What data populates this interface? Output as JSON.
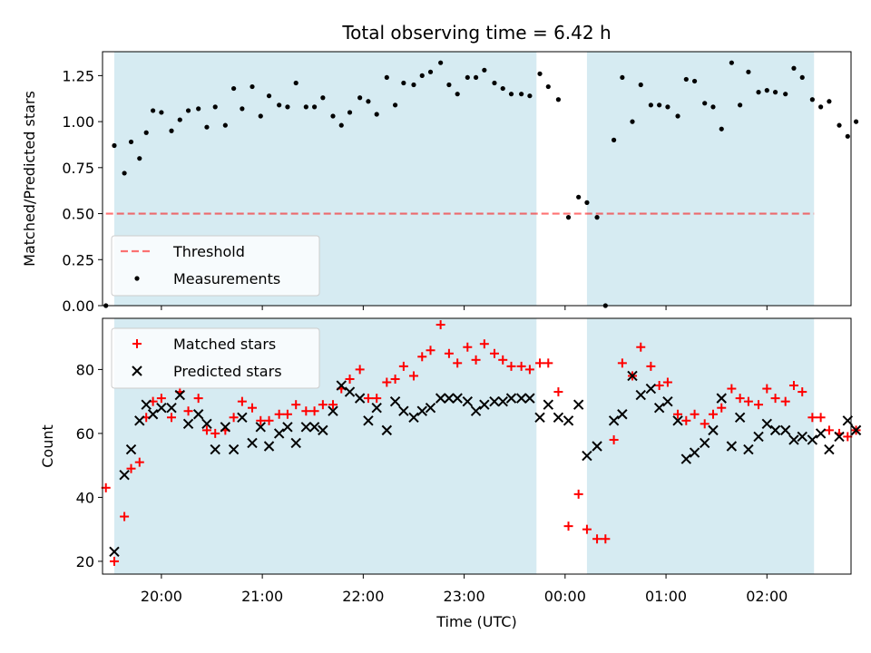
{
  "chart_data": [
    {
      "type": "scatter",
      "title": "Total observing time = 6.42 h",
      "xlabel": "",
      "ylabel": "Matched/Predicted stars",
      "xlim": [
        "19:25",
        "02:50"
      ],
      "ylim": [
        0,
        1.38
      ],
      "yticks": [
        0.0,
        0.25,
        0.5,
        0.75,
        1.0,
        1.25
      ],
      "ytick_labels": [
        "0.00",
        "0.25",
        "0.50",
        "0.75",
        "1.00",
        "1.25"
      ],
      "xticks": [
        "20:00",
        "21:00",
        "22:00",
        "23:00",
        "00:00",
        "01:00",
        "02:00"
      ],
      "shaded_ranges": [
        [
          "19:32",
          "23:43"
        ],
        [
          "00:13",
          "02:28"
        ]
      ],
      "shade_color": "#add8e6",
      "legend": {
        "placement": "lower-left"
      },
      "series": [
        {
          "name": "Threshold",
          "style": "dashed-line",
          "color": "#ff0000",
          "x": [
            "19:27",
            "02:28"
          ],
          "y": [
            0.5,
            0.5
          ]
        },
        {
          "name": "Measurements",
          "style": "dot",
          "color": "#000000",
          "points": [
            [
              "19:27",
              0.0
            ],
            [
              "19:32",
              0.87
            ],
            [
              "19:38",
              0.72
            ],
            [
              "19:42",
              0.89
            ],
            [
              "19:47",
              0.8
            ],
            [
              "19:51",
              0.94
            ],
            [
              "19:55",
              1.06
            ],
            [
              "20:00",
              1.05
            ],
            [
              "20:06",
              0.95
            ],
            [
              "20:11",
              1.01
            ],
            [
              "20:16",
              1.06
            ],
            [
              "20:22",
              1.07
            ],
            [
              "20:27",
              0.97
            ],
            [
              "20:32",
              1.08
            ],
            [
              "20:38",
              0.98
            ],
            [
              "20:43",
              1.18
            ],
            [
              "20:48",
              1.07
            ],
            [
              "20:54",
              1.19
            ],
            [
              "20:59",
              1.03
            ],
            [
              "21:04",
              1.14
            ],
            [
              "21:10",
              1.09
            ],
            [
              "21:15",
              1.08
            ],
            [
              "21:20",
              1.21
            ],
            [
              "21:26",
              1.08
            ],
            [
              "21:31",
              1.08
            ],
            [
              "21:36",
              1.13
            ],
            [
              "21:42",
              1.03
            ],
            [
              "21:47",
              0.98
            ],
            [
              "21:52",
              1.05
            ],
            [
              "21:58",
              1.13
            ],
            [
              "22:03",
              1.11
            ],
            [
              "22:08",
              1.04
            ],
            [
              "22:14",
              1.24
            ],
            [
              "22:19",
              1.09
            ],
            [
              "22:24",
              1.21
            ],
            [
              "22:30",
              1.2
            ],
            [
              "22:35",
              1.25
            ],
            [
              "22:40",
              1.27
            ],
            [
              "22:46",
              1.32
            ],
            [
              "22:51",
              1.2
            ],
            [
              "22:56",
              1.15
            ],
            [
              "23:02",
              1.24
            ],
            [
              "23:07",
              1.24
            ],
            [
              "23:12",
              1.28
            ],
            [
              "23:18",
              1.21
            ],
            [
              "23:23",
              1.18
            ],
            [
              "23:28",
              1.15
            ],
            [
              "23:34",
              1.15
            ],
            [
              "23:39",
              1.14
            ],
            [
              "23:45",
              1.26
            ],
            [
              "23:50",
              1.19
            ],
            [
              "23:56",
              1.12
            ],
            [
              "00:02",
              0.48
            ],
            [
              "00:08",
              0.59
            ],
            [
              "00:13",
              0.56
            ],
            [
              "00:19",
              0.48
            ],
            [
              "00:24",
              0.0
            ],
            [
              "00:29",
              0.9
            ],
            [
              "00:34",
              1.24
            ],
            [
              "00:40",
              1.0
            ],
            [
              "00:45",
              1.2
            ],
            [
              "00:51",
              1.09
            ],
            [
              "00:56",
              1.09
            ],
            [
              "01:01",
              1.08
            ],
            [
              "01:07",
              1.03
            ],
            [
              "01:12",
              1.23
            ],
            [
              "01:17",
              1.22
            ],
            [
              "01:23",
              1.1
            ],
            [
              "01:28",
              1.08
            ],
            [
              "01:33",
              0.96
            ],
            [
              "01:39",
              1.32
            ],
            [
              "01:44",
              1.09
            ],
            [
              "01:49",
              1.27
            ],
            [
              "01:55",
              1.16
            ],
            [
              "02:00",
              1.17
            ],
            [
              "02:05",
              1.16
            ],
            [
              "02:11",
              1.15
            ],
            [
              "02:16",
              1.29
            ],
            [
              "02:21",
              1.24
            ],
            [
              "02:27",
              1.12
            ],
            [
              "02:32",
              1.08
            ],
            [
              "02:37",
              1.11
            ],
            [
              "02:43",
              0.98
            ],
            [
              "02:48",
              0.92
            ],
            [
              "02:53",
              1.0
            ]
          ]
        }
      ]
    },
    {
      "type": "scatter",
      "title": "",
      "xlabel": "Time (UTC)",
      "ylabel": "Count",
      "xlim": [
        "19:25",
        "02:50"
      ],
      "ylim": [
        16,
        96
      ],
      "yticks": [
        20,
        40,
        60,
        80
      ],
      "xticks": [
        "20:00",
        "21:00",
        "22:00",
        "23:00",
        "00:00",
        "01:00",
        "02:00"
      ],
      "shaded_ranges": [
        [
          "19:32",
          "23:43"
        ],
        [
          "00:13",
          "02:28"
        ]
      ],
      "shade_color": "#add8e6",
      "legend": {
        "placement": "top-left"
      },
      "series": [
        {
          "name": "Matched stars",
          "marker": "+",
          "color": "#ff0000",
          "points": [
            [
              "19:27",
              43
            ],
            [
              "19:32",
              20
            ],
            [
              "19:38",
              34
            ],
            [
              "19:42",
              49
            ],
            [
              "19:47",
              51
            ],
            [
              "19:51",
              65
            ],
            [
              "19:55",
              70
            ],
            [
              "20:00",
              71
            ],
            [
              "20:06",
              65
            ],
            [
              "20:11",
              73
            ],
            [
              "20:16",
              67
            ],
            [
              "20:22",
              71
            ],
            [
              "20:27",
              61
            ],
            [
              "20:32",
              60
            ],
            [
              "20:38",
              61
            ],
            [
              "20:43",
              65
            ],
            [
              "20:48",
              70
            ],
            [
              "20:54",
              68
            ],
            [
              "20:59",
              64
            ],
            [
              "21:04",
              64
            ],
            [
              "21:10",
              66
            ],
            [
              "21:15",
              66
            ],
            [
              "21:20",
              69
            ],
            [
              "21:26",
              67
            ],
            [
              "21:31",
              67
            ],
            [
              "21:36",
              69
            ],
            [
              "21:42",
              69
            ],
            [
              "21:47",
              74
            ],
            [
              "21:52",
              77
            ],
            [
              "21:58",
              80
            ],
            [
              "22:03",
              71
            ],
            [
              "22:08",
              71
            ],
            [
              "22:14",
              76
            ],
            [
              "22:19",
              77
            ],
            [
              "22:24",
              81
            ],
            [
              "22:30",
              78
            ],
            [
              "22:35",
              84
            ],
            [
              "22:40",
              86
            ],
            [
              "22:46",
              94
            ],
            [
              "22:51",
              85
            ],
            [
              "22:56",
              82
            ],
            [
              "23:02",
              87
            ],
            [
              "23:07",
              83
            ],
            [
              "23:12",
              88
            ],
            [
              "23:18",
              85
            ],
            [
              "23:23",
              83
            ],
            [
              "23:28",
              81
            ],
            [
              "23:34",
              81
            ],
            [
              "23:39",
              80
            ],
            [
              "23:45",
              82
            ],
            [
              "23:50",
              82
            ],
            [
              "23:56",
              73
            ],
            [
              "00:02",
              31
            ],
            [
              "00:08",
              41
            ],
            [
              "00:13",
              30
            ],
            [
              "00:19",
              27
            ],
            [
              "00:24",
              27
            ],
            [
              "00:29",
              58
            ],
            [
              "00:34",
              82
            ],
            [
              "00:40",
              78
            ],
            [
              "00:45",
              87
            ],
            [
              "00:51",
              81
            ],
            [
              "00:56",
              75
            ],
            [
              "01:01",
              76
            ],
            [
              "01:07",
              66
            ],
            [
              "01:12",
              64
            ],
            [
              "01:17",
              66
            ],
            [
              "01:23",
              63
            ],
            [
              "01:28",
              66
            ],
            [
              "01:33",
              68
            ],
            [
              "01:39",
              74
            ],
            [
              "01:44",
              71
            ],
            [
              "01:49",
              70
            ],
            [
              "01:55",
              69
            ],
            [
              "02:00",
              74
            ],
            [
              "02:05",
              71
            ],
            [
              "02:11",
              70
            ],
            [
              "02:16",
              75
            ],
            [
              "02:21",
              73
            ],
            [
              "02:27",
              65
            ],
            [
              "02:32",
              65
            ],
            [
              "02:37",
              61
            ],
            [
              "02:43",
              60
            ],
            [
              "02:48",
              59
            ],
            [
              "02:53",
              61
            ]
          ]
        },
        {
          "name": "Predicted stars",
          "marker": "x",
          "color": "#000000",
          "points": [
            [
              "19:32",
              23
            ],
            [
              "19:38",
              47
            ],
            [
              "19:42",
              55
            ],
            [
              "19:47",
              64
            ],
            [
              "19:51",
              69
            ],
            [
              "19:55",
              66
            ],
            [
              "20:00",
              68
            ],
            [
              "20:06",
              68
            ],
            [
              "20:11",
              72
            ],
            [
              "20:16",
              63
            ],
            [
              "20:22",
              66
            ],
            [
              "20:27",
              63
            ],
            [
              "20:32",
              55
            ],
            [
              "20:38",
              62
            ],
            [
              "20:43",
              55
            ],
            [
              "20:48",
              65
            ],
            [
              "20:54",
              57
            ],
            [
              "20:59",
              62
            ],
            [
              "21:04",
              56
            ],
            [
              "21:10",
              60
            ],
            [
              "21:15",
              62
            ],
            [
              "21:20",
              57
            ],
            [
              "21:26",
              62
            ],
            [
              "21:31",
              62
            ],
            [
              "21:36",
              61
            ],
            [
              "21:42",
              67
            ],
            [
              "21:47",
              75
            ],
            [
              "21:52",
              73
            ],
            [
              "21:58",
              71
            ],
            [
              "22:03",
              64
            ],
            [
              "22:08",
              68
            ],
            [
              "22:14",
              61
            ],
            [
              "22:19",
              70
            ],
            [
              "22:24",
              67
            ],
            [
              "22:30",
              65
            ],
            [
              "22:35",
              67
            ],
            [
              "22:40",
              68
            ],
            [
              "22:46",
              71
            ],
            [
              "22:51",
              71
            ],
            [
              "22:56",
              71
            ],
            [
              "23:02",
              70
            ],
            [
              "23:07",
              67
            ],
            [
              "23:12",
              69
            ],
            [
              "23:18",
              70
            ],
            [
              "23:23",
              70
            ],
            [
              "23:28",
              71
            ],
            [
              "23:34",
              71
            ],
            [
              "23:39",
              71
            ],
            [
              "23:45",
              65
            ],
            [
              "23:50",
              69
            ],
            [
              "23:56",
              65
            ],
            [
              "00:02",
              64
            ],
            [
              "00:08",
              69
            ],
            [
              "00:13",
              53
            ],
            [
              "00:19",
              56
            ],
            [
              "00:29",
              64
            ],
            [
              "00:34",
              66
            ],
            [
              "00:40",
              78
            ],
            [
              "00:45",
              72
            ],
            [
              "00:51",
              74
            ],
            [
              "00:56",
              68
            ],
            [
              "01:01",
              70
            ],
            [
              "01:07",
              64
            ],
            [
              "01:12",
              52
            ],
            [
              "01:17",
              54
            ],
            [
              "01:23",
              57
            ],
            [
              "01:28",
              61
            ],
            [
              "01:33",
              71
            ],
            [
              "01:39",
              56
            ],
            [
              "01:44",
              65
            ],
            [
              "01:49",
              55
            ],
            [
              "01:55",
              59
            ],
            [
              "02:00",
              63
            ],
            [
              "02:05",
              61
            ],
            [
              "02:11",
              61
            ],
            [
              "02:16",
              58
            ],
            [
              "02:21",
              59
            ],
            [
              "02:27",
              58
            ],
            [
              "02:32",
              60
            ],
            [
              "02:37",
              55
            ],
            [
              "02:43",
              59
            ],
            [
              "02:48",
              64
            ],
            [
              "02:53",
              61
            ]
          ]
        }
      ]
    }
  ]
}
